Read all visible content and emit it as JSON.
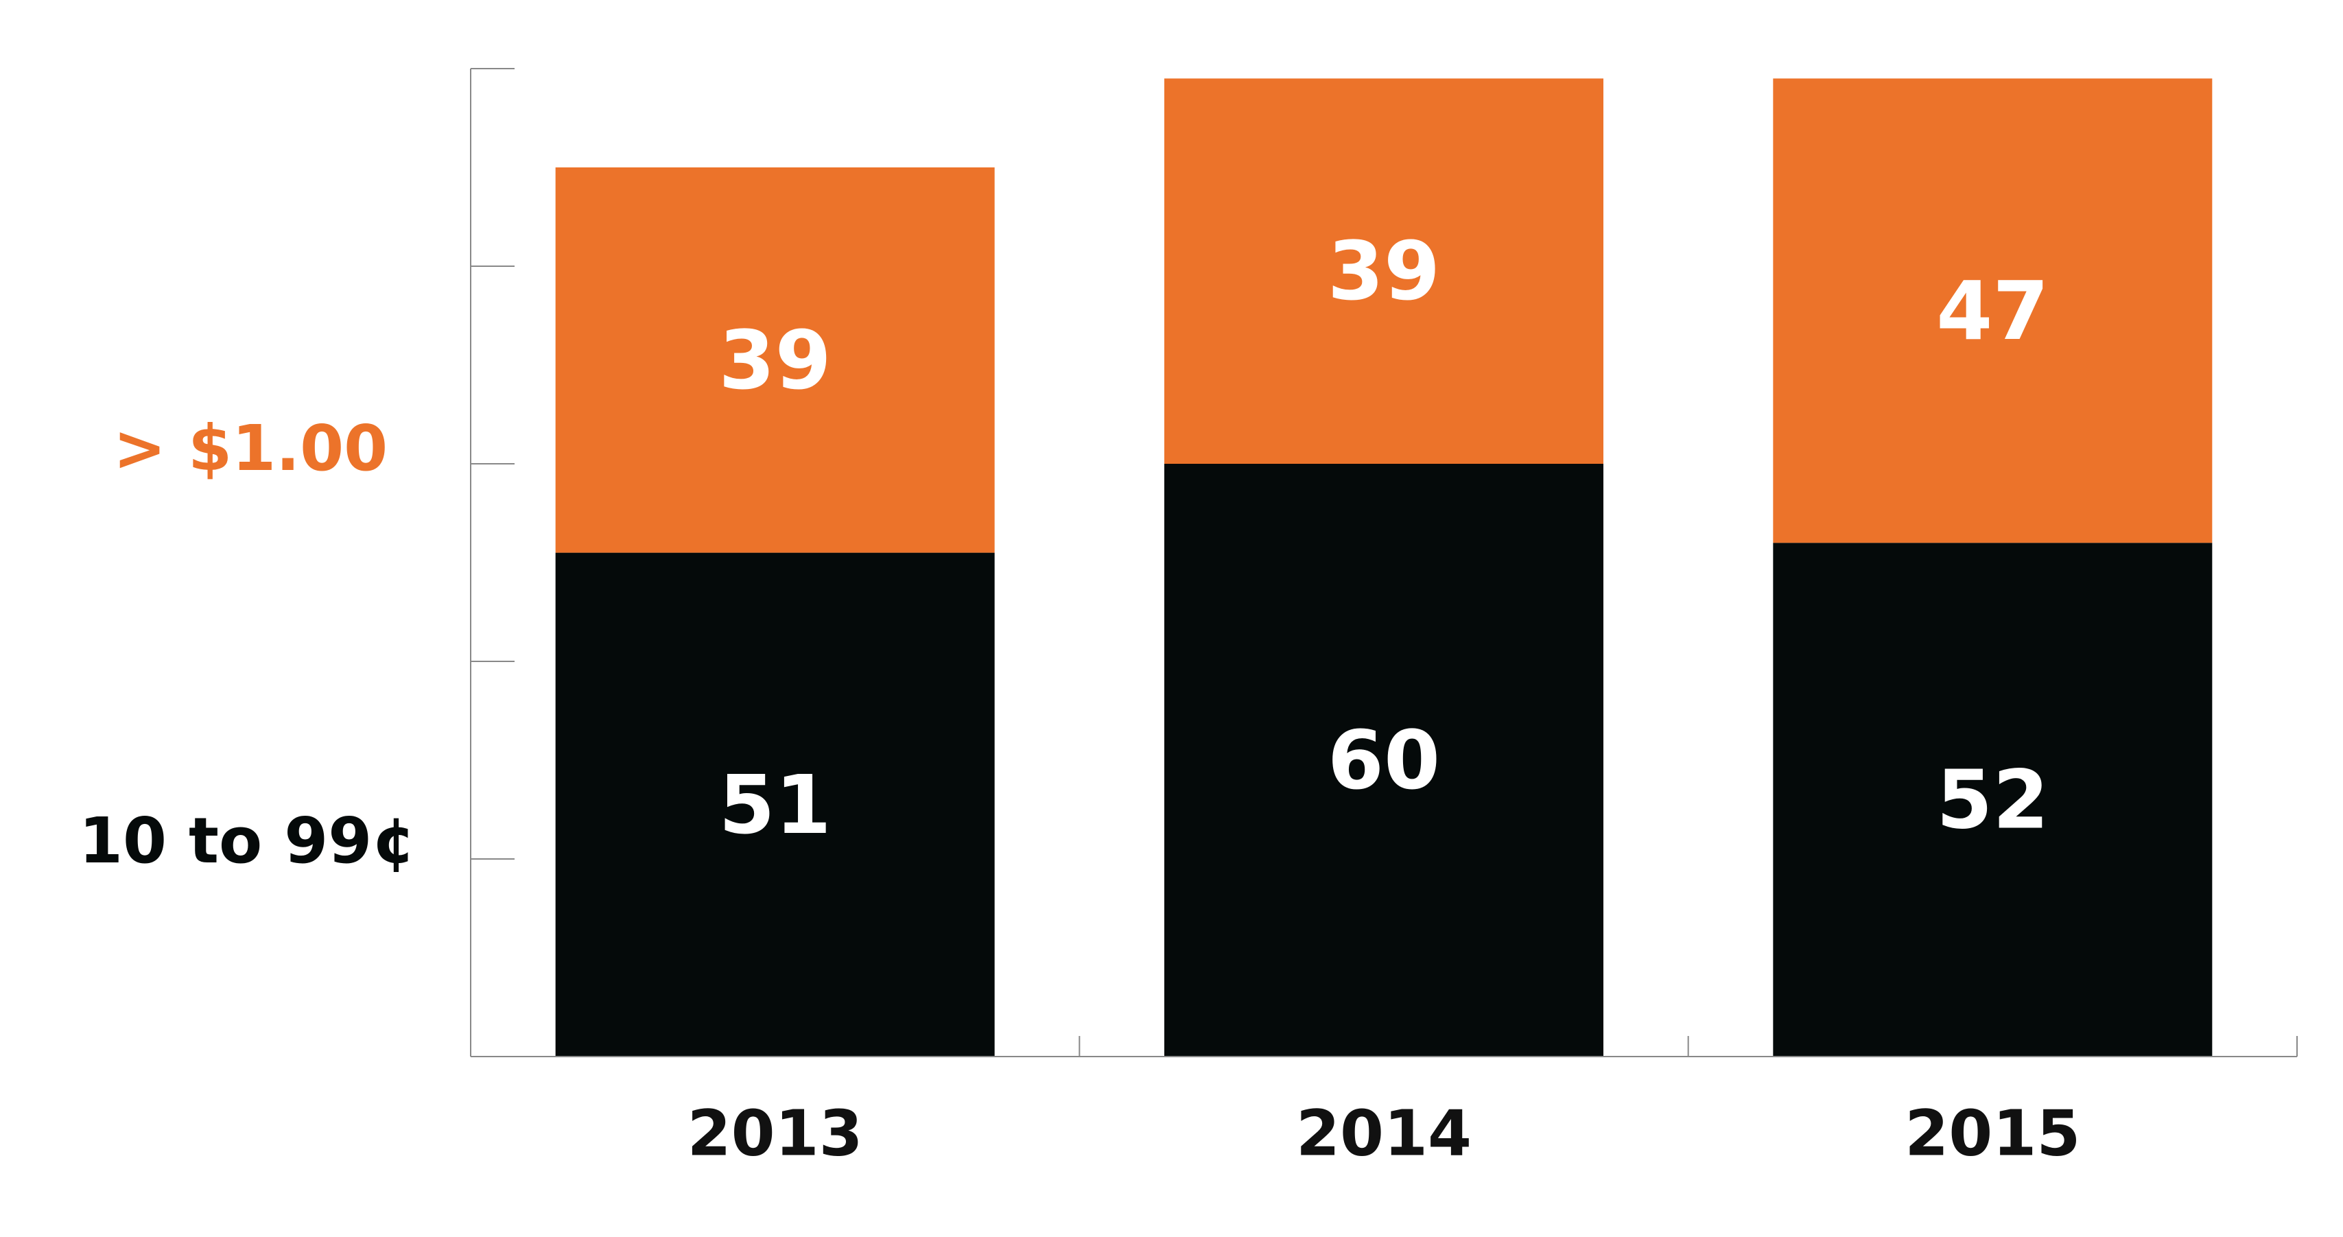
{
  "chart_data": {
    "type": "bar",
    "stacked": true,
    "categories": [
      "2013",
      "2014",
      "2015"
    ],
    "series": [
      {
        "name": "10 to 99¢",
        "values": [
          51,
          60,
          52
        ],
        "color": "#050a0a"
      },
      {
        "name": "> $1.00",
        "values": [
          39,
          39,
          47
        ],
        "color": "#ec732a"
      }
    ],
    "ylim": [
      0,
      100
    ],
    "y_ticks": [
      0,
      20,
      40,
      60,
      80,
      100
    ],
    "show_y_tick_labels": false,
    "grid": false,
    "legend_placement": "left",
    "data_labels": true,
    "data_label_color": "#ffffff",
    "axis_color": "#888888"
  }
}
